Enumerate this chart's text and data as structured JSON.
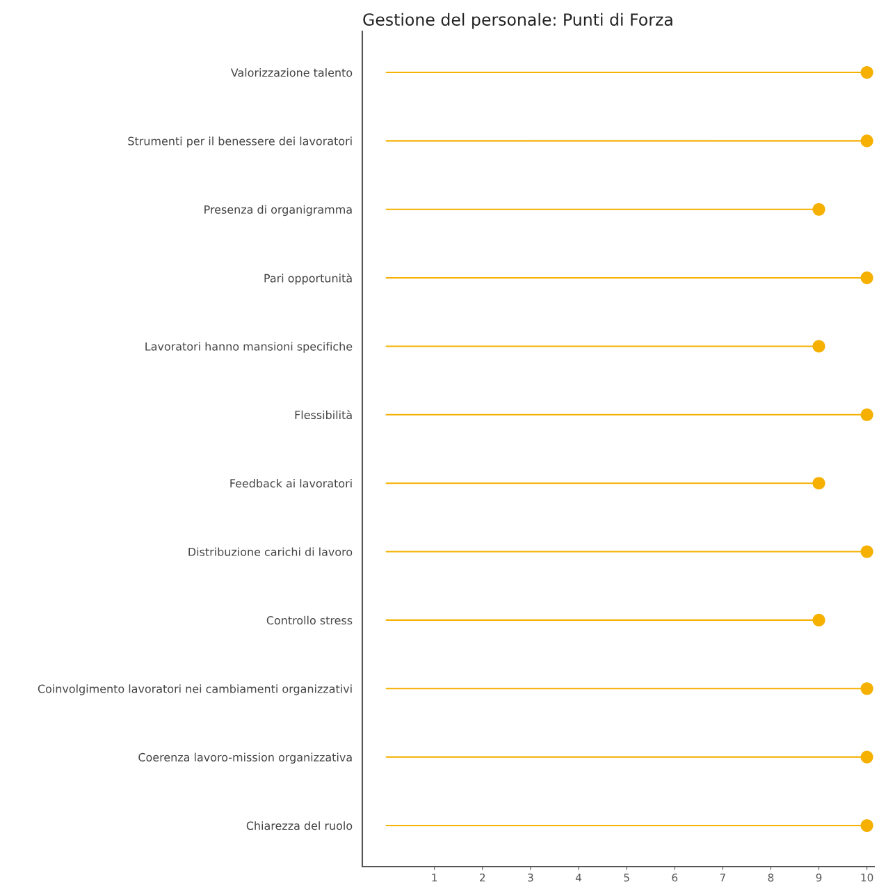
{
  "chart_data": {
    "type": "lollipop",
    "title": "Gestione del personale: Punti di Forza",
    "orientation": "horizontal",
    "categories": [
      "Valorizzazione talento",
      "Strumenti per il benessere dei lavoratori",
      "Presenza di organigramma",
      "Pari opportunità",
      "Lavoratori hanno mansioni specifiche",
      "Flessibilità",
      "Feedback ai lavoratori",
      "Distribuzione carichi di lavoro",
      "Controllo stress",
      "Coinvolgimento lavoratori nei cambiamenti organizzativi",
      "Coerenza lavoro-mission organizzativa",
      "Chiarezza del ruolo"
    ],
    "values": [
      10,
      10,
      9,
      10,
      9,
      10,
      9,
      10,
      9,
      10,
      10,
      10
    ],
    "color": "#f5b000",
    "xlim": [
      -0.5,
      10.15
    ],
    "xticks": [
      1,
      2,
      3,
      4,
      5,
      6,
      7,
      8,
      9,
      10
    ],
    "marker": "circle",
    "grid": false,
    "legend": false
  }
}
